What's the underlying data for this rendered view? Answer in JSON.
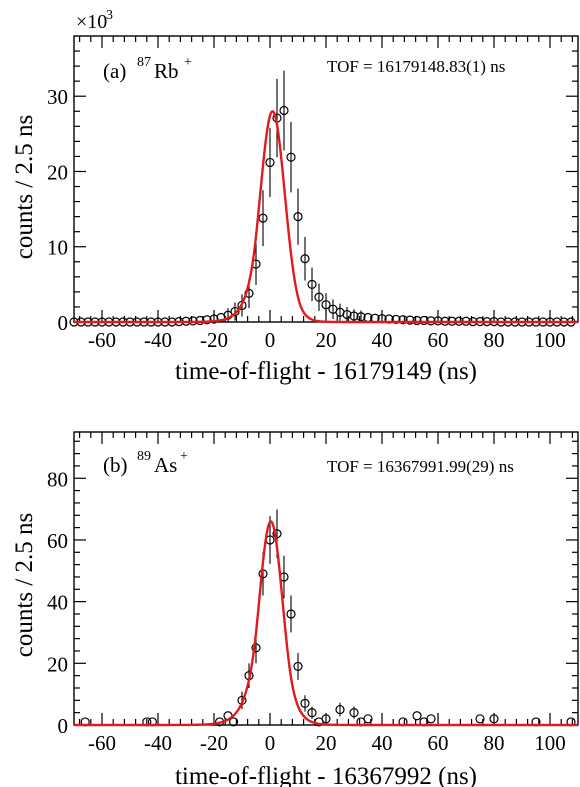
{
  "colors": {
    "fit": "#e31a1c",
    "markers": "#000000"
  },
  "chart_data": [
    {
      "type": "scatter",
      "panel_label": "(a)",
      "isotope_mass": "87",
      "isotope_symbol": "Rb",
      "isotope_charge": "+",
      "annotation": "TOF = 16179148.83(1) ns",
      "xlabel": "time-of-flight - 16179149 (ns)",
      "ylabel": "counts / 2.5 ns",
      "y_multiplier": "×10",
      "y_multiplier_exp": "3",
      "xlim": [
        -70,
        110
      ],
      "ylim": [
        0,
        38
      ],
      "x_ticks": [
        -60,
        -40,
        -20,
        0,
        20,
        40,
        60,
        80,
        100
      ],
      "y_ticks": [
        0,
        10,
        20,
        30
      ],
      "x_tick_labels": [
        "-60",
        "-40",
        "-20",
        "0",
        "20",
        "40",
        "60",
        "80",
        "100"
      ],
      "y_tick_labels": [
        "0",
        "10",
        "20",
        "30"
      ],
      "grid": false,
      "series": [
        {
          "kind": "data",
          "x": [
            -70,
            -67.5,
            -65,
            -62.5,
            -60,
            -57.5,
            -55,
            -52.5,
            -50,
            -47.5,
            -45,
            -42.5,
            -40,
            -37.5,
            -35,
            -32.5,
            -30,
            -27.5,
            -25,
            -22.5,
            -20,
            -17.5,
            -15,
            -12.5,
            -10,
            -7.5,
            -5,
            -2.5,
            0,
            2.5,
            5,
            7.5,
            10,
            12.5,
            15,
            17.5,
            20,
            22.5,
            25,
            27.5,
            30,
            32.5,
            35,
            37.5,
            40,
            42.5,
            45,
            47.5,
            50,
            52.5,
            55,
            57.5,
            60,
            62.5,
            65,
            67.5,
            70,
            72.5,
            75,
            77.5,
            80,
            82.5,
            85,
            87.5,
            90,
            92.5,
            95,
            97.5,
            100,
            102.5,
            105,
            107.5
          ],
          "y": [
            0,
            0,
            0,
            0,
            0,
            0,
            0,
            0,
            0,
            0,
            0,
            0,
            0,
            0,
            0,
            0.05,
            0.1,
            0.15,
            0.2,
            0.3,
            0.4,
            0.6,
            0.9,
            1.4,
            2.2,
            3.8,
            7.7,
            13.8,
            21.2,
            27.1,
            28.1,
            21.9,
            14.0,
            8.4,
            5.0,
            3.3,
            2.3,
            1.7,
            1.3,
            1.0,
            0.8,
            0.7,
            0.6,
            0.5,
            0.45,
            0.4,
            0.35,
            0.3,
            0.25,
            0.2,
            0.2,
            0.15,
            0.15,
            0.1,
            0.1,
            0.1,
            0.1,
            0.05,
            0.05,
            0.05,
            0.05,
            0,
            0,
            0,
            0,
            0,
            0,
            0,
            0,
            0,
            0,
            0
          ]
        },
        {
          "kind": "fit",
          "model": "hyper-EMG-like peak",
          "mu": 0.9,
          "amplitude": 28.0,
          "sigma": 4.4,
          "tail_left": 6.0,
          "tail_right": 9.0
        }
      ]
    },
    {
      "type": "scatter",
      "panel_label": "(b)",
      "isotope_mass": "89",
      "isotope_symbol": "As",
      "isotope_charge": "+",
      "annotation": "TOF = 16367991.99(29) ns",
      "xlabel": "time-of-flight - 16367992 (ns)",
      "ylabel": "counts / 2.5 ns",
      "xlim": [
        -70,
        110
      ],
      "ylim": [
        0,
        95
      ],
      "x_ticks": [
        -60,
        -40,
        -20,
        0,
        20,
        40,
        60,
        80,
        100
      ],
      "y_ticks": [
        0,
        20,
        40,
        60,
        80
      ],
      "x_tick_labels": [
        "-60",
        "-40",
        "-20",
        "0",
        "20",
        "40",
        "60",
        "80",
        "100"
      ],
      "y_tick_labels": [
        "0",
        "20",
        "40",
        "60",
        "80"
      ],
      "grid": false,
      "series": [
        {
          "kind": "data",
          "x": [
            -66,
            -44,
            -42,
            -18,
            -15,
            -13,
            -10,
            -7.5,
            -5,
            -2.5,
            0,
            2.5,
            5,
            7.5,
            10,
            12.5,
            15,
            17.5,
            20,
            25,
            30,
            32.5,
            35,
            47.5,
            52.5,
            55,
            57.5,
            75,
            80,
            95,
            107.5
          ],
          "y": [
            1,
            1,
            1,
            1,
            3,
            1,
            8,
            16,
            25,
            49,
            60,
            62,
            48,
            36,
            19,
            7,
            4,
            1,
            2,
            5,
            4,
            1,
            2,
            1,
            3,
            1,
            2,
            2,
            2,
            1,
            1
          ]
        },
        {
          "kind": "fit",
          "model": "hyper-EMG-like peak",
          "mu": 0.3,
          "amplitude": 66.0,
          "sigma": 4.2,
          "tail_left": 5.0,
          "tail_right": 6.5
        }
      ]
    }
  ]
}
